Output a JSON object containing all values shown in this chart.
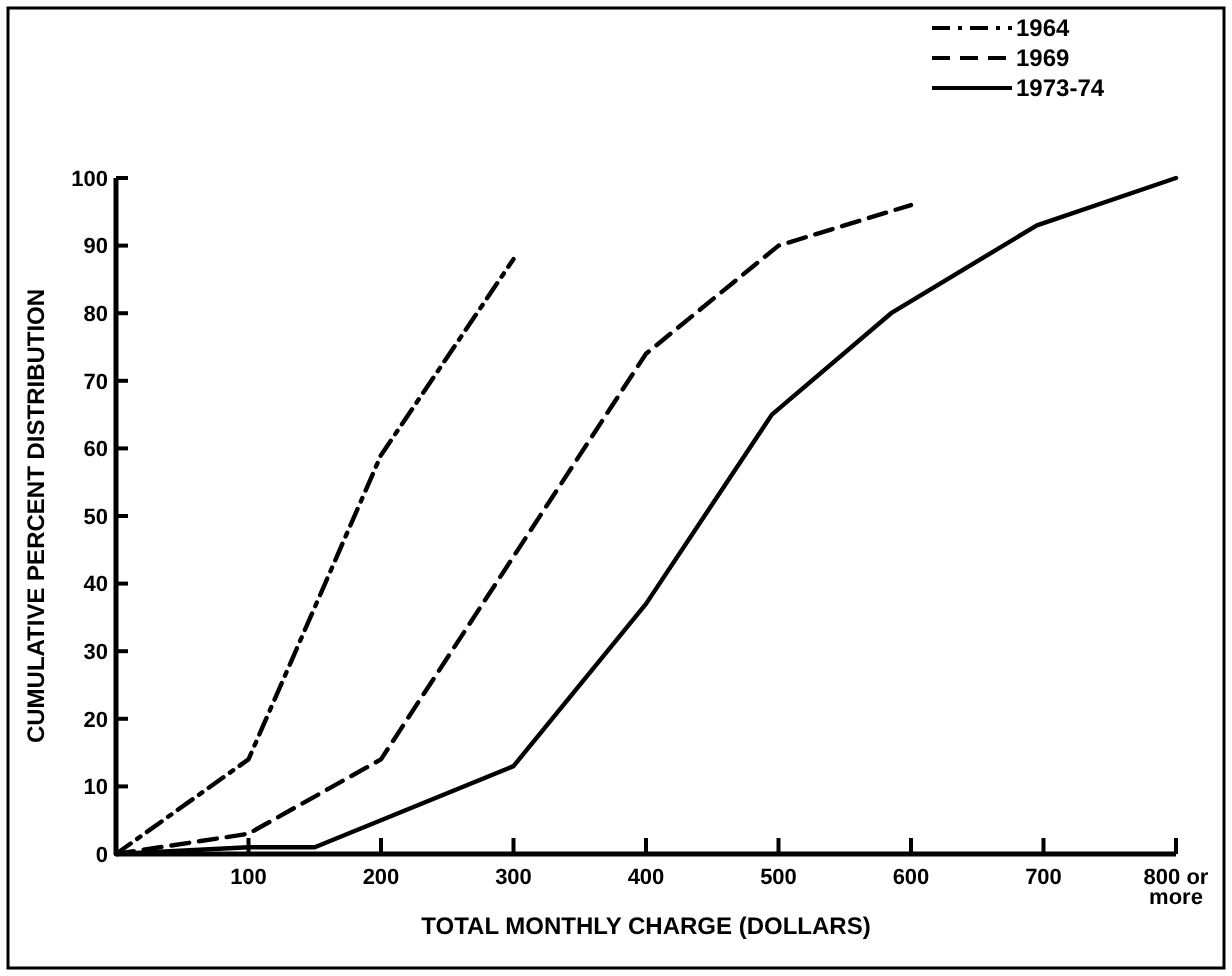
{
  "chart_data": {
    "type": "line",
    "xlabel": "TOTAL MONTHLY CHARGE (DOLLARS)",
    "ylabel": "CUMULATIVE PERCENT DISTRIBUTION",
    "series": [
      {
        "name": "1964",
        "color": "#000000",
        "line_style": "dashdot",
        "x": [
          0,
          100,
          200,
          300
        ],
        "values": [
          0,
          14,
          59,
          88
        ]
      },
      {
        "name": "1969",
        "color": "#000000",
        "line_style": "dashed",
        "x": [
          0,
          100,
          200,
          400,
          500,
          600
        ],
        "values": [
          0,
          3,
          14,
          74,
          90,
          96
        ]
      },
      {
        "name": "1973-74",
        "color": "#000000",
        "line_style": "solid",
        "x": [
          0,
          100,
          150,
          200,
          300,
          400,
          495,
          585,
          695,
          800
        ],
        "values": [
          0,
          1,
          1,
          5,
          13,
          37,
          65,
          80,
          93,
          100
        ]
      }
    ],
    "xlim": [
      0,
      800
    ],
    "xticks": [
      100,
      200,
      300,
      400,
      500,
      600,
      700,
      {
        "value": 800,
        "label": "800 or\nmore"
      }
    ],
    "ylim": [
      0,
      100
    ],
    "yticks": [
      0,
      10,
      20,
      30,
      40,
      50,
      60,
      70,
      80,
      90,
      100
    ],
    "grid": false,
    "legend": "top right"
  }
}
